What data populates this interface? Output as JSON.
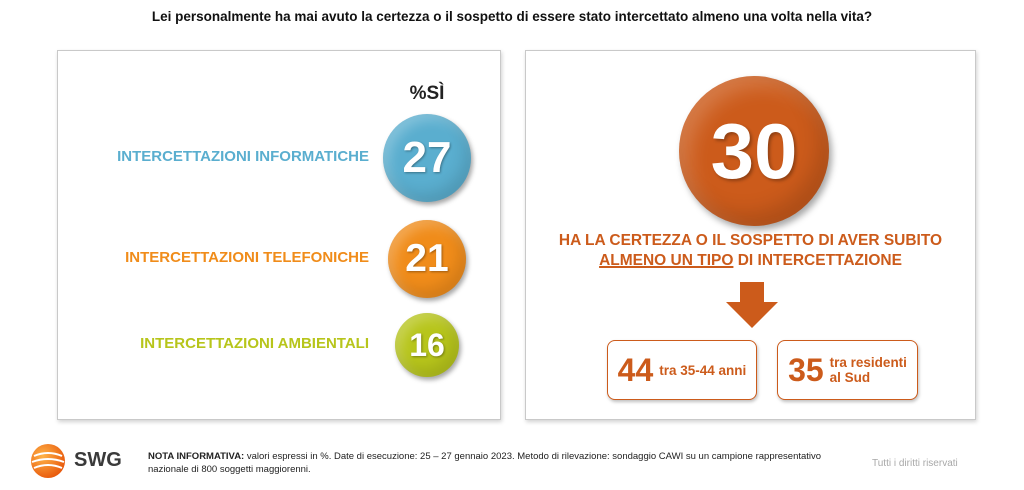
{
  "title": "Lei personalmente ha mai avuto la certezza o il sospetto di essere stato intercettato almeno una volta nella vita?",
  "chart_data": {
    "type": "bubble",
    "column_header": "%SÌ",
    "items": [
      {
        "label": "INTERCETTAZIONI INFORMATICHE",
        "value": 27,
        "color": "#5aaecf"
      },
      {
        "label": "INTERCETTAZIONI TELEFONICHE",
        "value": 21,
        "color": "#f08c1a"
      },
      {
        "label": "INTERCETTAZIONI AMBIENTALI",
        "value": 16,
        "color": "#b7c51b"
      }
    ]
  },
  "summary": {
    "value": "30",
    "color": "#cc5b1b",
    "line1": "HA LA CERTEZZA O IL SOSPETTO DI AVER SUBITO",
    "line2_underlined": "ALMENO UN TIPO",
    "line2_rest": " DI INTERCETTAZIONE",
    "boxes": [
      {
        "value": "44",
        "text_line1": "tra 35-44 anni",
        "text_line2": ""
      },
      {
        "value": "35",
        "text_line1": "tra residenti",
        "text_line2": "al Sud"
      }
    ]
  },
  "footer": {
    "logo_text": "SWG",
    "note_label": "NOTA INFORMATIVA:",
    "note_text": " valori espressi in %. Date di esecuzione: 25 – 27 gennaio 2023. Metodo di rilevazione: sondaggio CAWI su un campione rappresentativo nazionale di 800 soggetti maggiorenni.",
    "rights": "Tutti i diritti riservati"
  }
}
